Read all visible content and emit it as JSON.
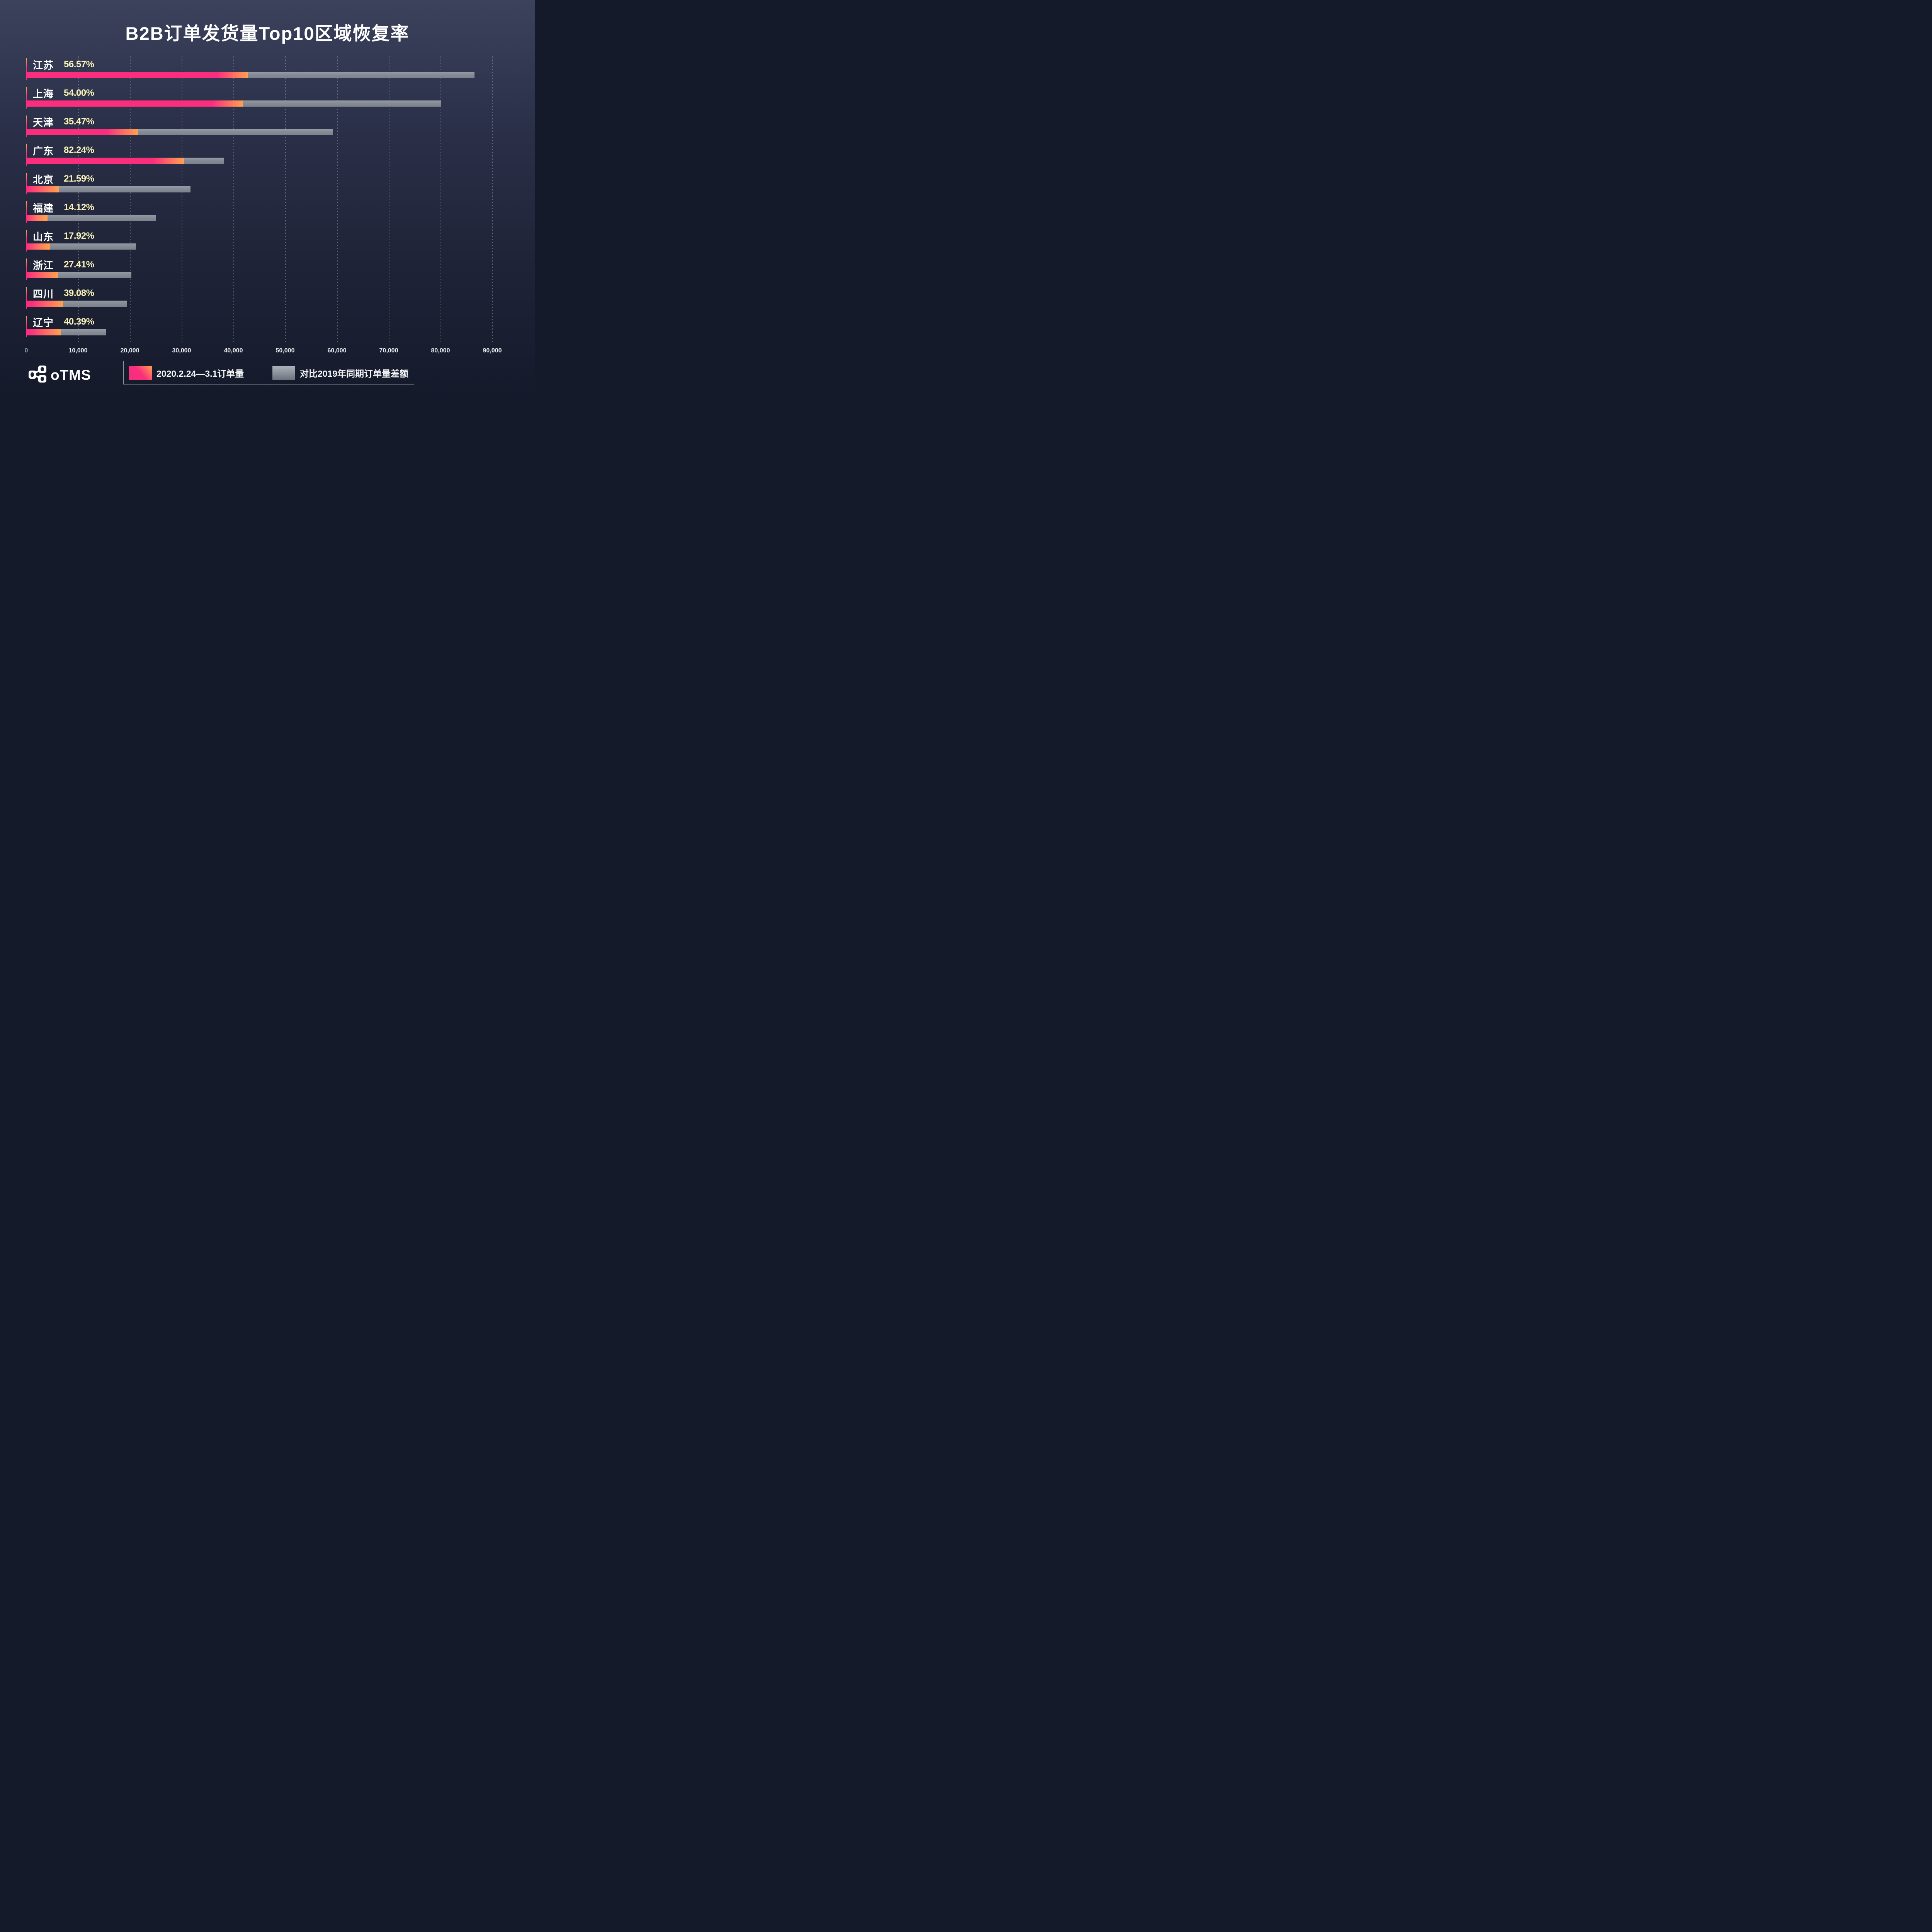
{
  "title": "B2B订单发货量Top10区域恢复率",
  "chart_data": {
    "type": "bar",
    "orientation": "horizontal",
    "stacked": true,
    "categories": [
      "江苏",
      "上海",
      "天津",
      "广东",
      "北京",
      "福建",
      "山东",
      "浙江",
      "四川",
      "辽宁"
    ],
    "recovery_rates": [
      "56.57%",
      "54.00%",
      "35.47%",
      "82.24%",
      "21.59%",
      "14.12%",
      "17.92%",
      "27.41%",
      "39.08%",
      "40.39%"
    ],
    "series": [
      {
        "name": "2020.2.24—3.1订单量",
        "values": [
          42800,
          41900,
          21600,
          30500,
          6300,
          4100,
          4600,
          6100,
          7100,
          6700
        ]
      },
      {
        "name": "对比2019年同期订单量差额",
        "values": [
          43800,
          38200,
          37600,
          7600,
          25400,
          21000,
          16600,
          14200,
          12400,
          8700
        ]
      }
    ],
    "stacked_totals_2019": [
      86600,
      80100,
      59200,
      38100,
      31700,
      25100,
      21200,
      20300,
      19500,
      15400
    ],
    "xlabel": "",
    "ylabel": "",
    "xlim": [
      0,
      90000
    ],
    "axis_ticks": [
      "0",
      "10,000",
      "20,000",
      "30,000",
      "40,000",
      "50,000",
      "60,000",
      "70,000",
      "80,000",
      "90,000"
    ],
    "grid": "dashed-vertical",
    "legend_position": "bottom"
  },
  "legend": {
    "items": [
      {
        "label": "2020.2.24—3.1订单量",
        "swatch": "pink-orange-gradient"
      },
      {
        "label": "对比2019年同期订单量差额",
        "swatch": "gray-gradient"
      }
    ]
  },
  "logo": {
    "text": "oTMS",
    "icon": "network-nodes-icon"
  },
  "colors": {
    "background_top": "#3c425c",
    "background_bottom": "#151a2b",
    "bar_pink": "#fb2e7e",
    "bar_orange": "#ffa24e",
    "bar_gray": "#878d97",
    "percent_text": "#f8f2b8",
    "province_text": "#ffffff",
    "axis_text": "#eceef2",
    "title_text": "#ffffff"
  }
}
